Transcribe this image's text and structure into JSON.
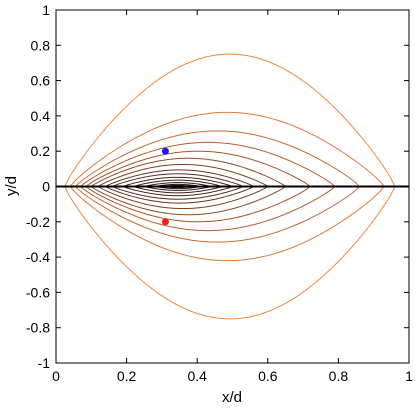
{
  "chart_data": {
    "type": "line",
    "title": "",
    "xlabel": "x/d",
    "ylabel": "y/d",
    "xlim": [
      0,
      1
    ],
    "ylim": [
      -1,
      1
    ],
    "grid": false,
    "xticks": [
      "0",
      "0.2",
      "0.4",
      "0.6",
      "0.8",
      "1"
    ],
    "yticks": [
      "-1",
      "-0.8",
      "-0.6",
      "-0.4",
      "-0.2",
      "0",
      "0.2",
      "0.4",
      "0.6",
      "0.8",
      "1"
    ],
    "baseline": {
      "y": 0,
      "x": [
        0,
        1
      ]
    },
    "contours": [
      {
        "x0": 0.305,
        "x1": 0.385,
        "h": 0.006,
        "color": "#1a0f0a"
      },
      {
        "x0": 0.28,
        "x1": 0.41,
        "h": 0.012,
        "color": "#241510"
      },
      {
        "x0": 0.25,
        "x1": 0.44,
        "h": 0.022,
        "color": "#2e1a12"
      },
      {
        "x0": 0.22,
        "x1": 0.47,
        "h": 0.036,
        "color": "#3a2015"
      },
      {
        "x0": 0.19,
        "x1": 0.5,
        "h": 0.052,
        "color": "#462618"
      },
      {
        "x0": 0.16,
        "x1": 0.53,
        "h": 0.072,
        "color": "#552d1b"
      },
      {
        "x0": 0.14,
        "x1": 0.56,
        "h": 0.094,
        "color": "#65351f"
      },
      {
        "x0": 0.12,
        "x1": 0.6,
        "h": 0.125,
        "color": "#783f23"
      },
      {
        "x0": 0.1,
        "x1": 0.65,
        "h": 0.16,
        "color": "#8d4927"
      },
      {
        "x0": 0.085,
        "x1": 0.72,
        "h": 0.2,
        "color": "#a3542b"
      },
      {
        "x0": 0.07,
        "x1": 0.79,
        "h": 0.25,
        "color": "#b85e30"
      },
      {
        "x0": 0.055,
        "x1": 0.86,
        "h": 0.315,
        "color": "#cc6a35"
      },
      {
        "x0": 0.04,
        "x1": 0.93,
        "h": 0.42,
        "color": "#e07a3a"
      },
      {
        "x0": 0.025,
        "x1": 0.96,
        "h": 0.75,
        "color": "#f08a40"
      }
    ],
    "points": [
      {
        "x": 0.31,
        "y": 0.2,
        "color": "#1a1aff"
      },
      {
        "x": 0.31,
        "y": -0.2,
        "color": "#ff1a1a"
      }
    ]
  }
}
